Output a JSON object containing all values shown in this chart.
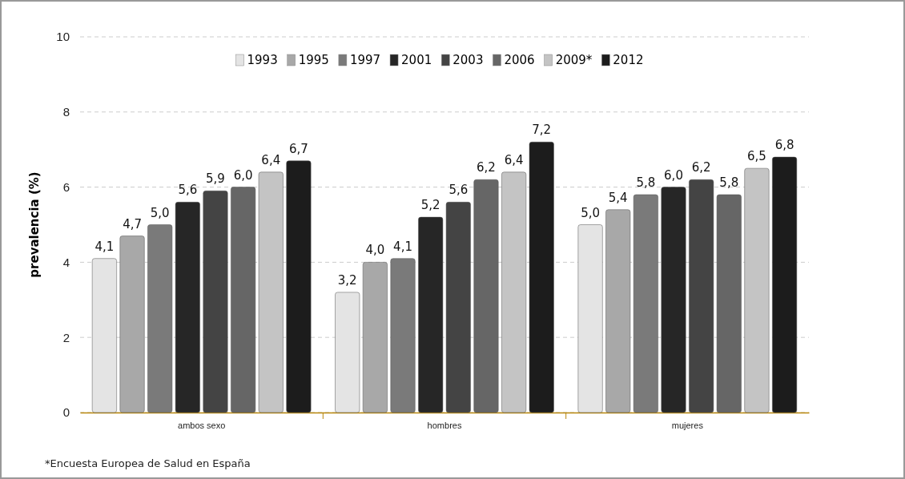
{
  "chart_data": {
    "type": "bar",
    "ylabel": "prevalencia (%)",
    "categories": [
      "ambos sexo",
      "hombres",
      "mujeres"
    ],
    "series": [
      {
        "name": "1993",
        "color": "#e4e4e4",
        "values": [
          4.1,
          3.2,
          5.0
        ],
        "value_labels": [
          "4,1",
          "3,2",
          "5,0"
        ]
      },
      {
        "name": "1995",
        "color": "#a8a8a8",
        "values": [
          4.7,
          4.0,
          5.4
        ],
        "value_labels": [
          "4,7",
          "4,0",
          "5,4"
        ]
      },
      {
        "name": "1997",
        "color": "#7a7a7a",
        "values": [
          5.0,
          4.1,
          5.8
        ],
        "value_labels": [
          "5,0",
          "4,1",
          "5,8"
        ]
      },
      {
        "name": "2001",
        "color": "#262626",
        "values": [
          5.6,
          5.2,
          6.0
        ],
        "value_labels": [
          "5,6",
          "5,2",
          "6,0"
        ]
      },
      {
        "name": "2003",
        "color": "#444444",
        "values": [
          5.9,
          5.6,
          6.2
        ],
        "value_labels": [
          "5,9",
          "5,6",
          "6,2"
        ]
      },
      {
        "name": "2006",
        "color": "#666666",
        "values": [
          6.0,
          6.2,
          5.8
        ],
        "value_labels": [
          "6,0",
          "6,2",
          "5,8"
        ]
      },
      {
        "name": "2009*",
        "color": "#c4c4c4",
        "values": [
          6.4,
          6.4,
          6.5
        ],
        "value_labels": [
          "6,4",
          "6,4",
          "6,5"
        ]
      },
      {
        "name": "2012",
        "color": "#1c1c1c",
        "values": [
          6.7,
          7.2,
          6.8
        ],
        "value_labels": [
          "6,7",
          "7,2",
          "6,8"
        ]
      }
    ],
    "ylim": [
      0,
      10
    ],
    "yticks": [
      0,
      2,
      4,
      6,
      8,
      10
    ],
    "grid": "y",
    "legend": "top",
    "annotations": [
      "*Encuesta Europea de Salud en España"
    ]
  }
}
